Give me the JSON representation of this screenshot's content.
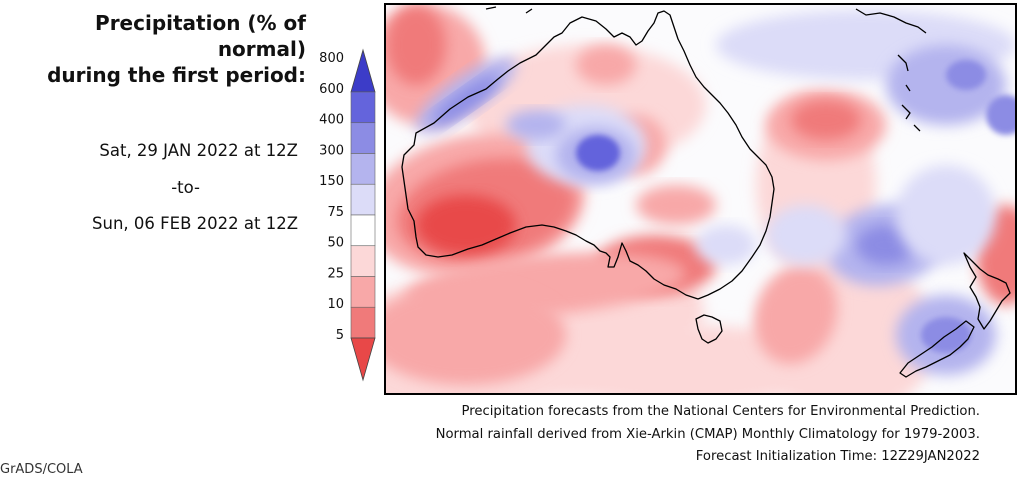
{
  "title": {
    "line1": "Precipitation (% of normal)",
    "line2": "during the first period:"
  },
  "period": {
    "start": "Sat, 29 JAN 2022 at 12Z",
    "separator": "-to-",
    "end": "Sun, 06 FEB 2022 at 12Z"
  },
  "legend": {
    "levels": [
      "800",
      "600",
      "400",
      "300",
      "150",
      "75",
      "50",
      "25",
      "10",
      "5"
    ],
    "colors": [
      "#3c3cc8",
      "#6464dc",
      "#8c8ce4",
      "#b4b4ee",
      "#dcdcf8",
      "#ffffff",
      "#fcd8d8",
      "#f8a8a8",
      "#f07a7a",
      "#e84848"
    ],
    "top_arrow_color": "#3c3cc8",
    "bottom_arrow_color": "#e84848"
  },
  "map": {
    "region": "Australia and New Zealand",
    "wet_color": "#5a5ad2",
    "dry_color": "#e65050",
    "coastline_color": "#000000"
  },
  "footer": {
    "line1": "Precipitation forecasts from the National Centers for Environmental Prediction.",
    "line2": "Normal rainfall derived from Xie-Arkin (CMAP) Monthly Climatology for 1979-2003.",
    "line3": "Forecast Initialization Time: 12Z29JAN2022"
  },
  "credit": "GrADS/COLA"
}
